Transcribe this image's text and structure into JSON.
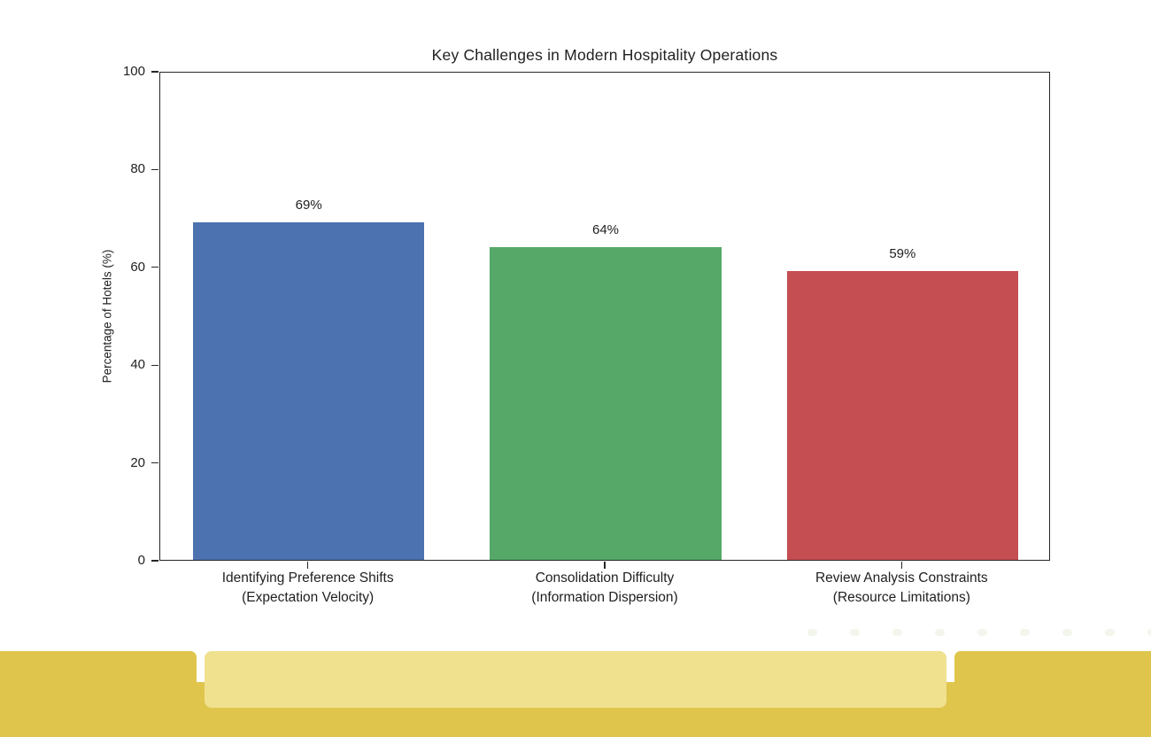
{
  "chart_data": {
    "type": "bar",
    "title": "Key Challenges in Modern Hospitality Operations",
    "xlabel": "",
    "ylabel": "Percentage of Hotels (%)",
    "ylim": [
      0,
      100
    ],
    "yticks": [
      0,
      20,
      40,
      60,
      80,
      100
    ],
    "grid": false,
    "legend": "none",
    "categories": [
      {
        "line1": "Identifying Preference Shifts",
        "line2": "(Expectation Velocity)",
        "slug": "identifying-preference-shifts"
      },
      {
        "line1": "Consolidation Difficulty",
        "line2": "(Information Dispersion)",
        "slug": "consolidation-difficulty"
      },
      {
        "line1": "Review Analysis Constraints",
        "line2": "(Resource Limitations)",
        "slug": "review-analysis-constraints"
      }
    ],
    "values": [
      69,
      64,
      59
    ],
    "value_labels": [
      "69%",
      "64%",
      "59%"
    ],
    "bar_colors": [
      "#4C72B0",
      "#55A868",
      "#C44E52"
    ]
  },
  "footer": {
    "band_color": "#E0C54D",
    "panel_color": "#F0E18F",
    "dot_color": "#F2F6ED"
  }
}
